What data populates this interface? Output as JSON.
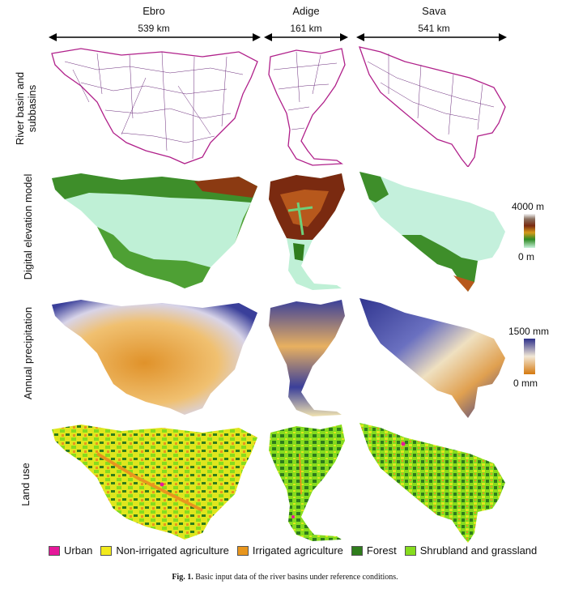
{
  "columns": [
    {
      "name": "Ebro",
      "distance": "539 km"
    },
    {
      "name": "Adige",
      "distance": "161 km"
    },
    {
      "name": "Sava",
      "distance": "541 km"
    }
  ],
  "rows": [
    {
      "label": "River basin and\nsubbasins"
    },
    {
      "label": "Digital elevation model"
    },
    {
      "label": "Annual precipitation"
    },
    {
      "label": "Land use"
    }
  ],
  "elevation_scale": {
    "max": "4000 m",
    "min": "0 m"
  },
  "precip_scale": {
    "max": "1500 mm",
    "min": "0 mm"
  },
  "legend": [
    {
      "label": "Urban",
      "color": "#e5189a"
    },
    {
      "label": "Non-irrigated agriculture",
      "color": "#f2ea1c"
    },
    {
      "label": "Irrigated agriculture",
      "color": "#e8961e"
    },
    {
      "label": "Forest",
      "color": "#2f7d1c"
    },
    {
      "label": "Shrubland and grassland",
      "color": "#86dc1e"
    }
  ],
  "caption": {
    "prefix": "Fig. 1.",
    "text": "Basic input data of the river basins under reference conditions."
  }
}
